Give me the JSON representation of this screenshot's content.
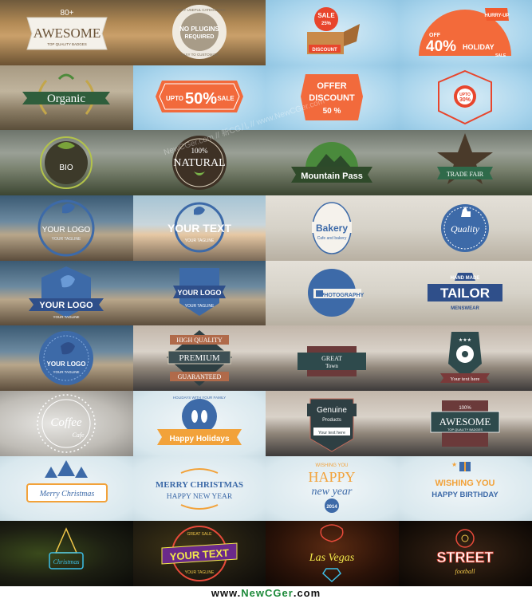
{
  "footer": {
    "prefix": "www.",
    "brand": "NewCGer",
    "suffix": ".com"
  },
  "watermark": "NewCGer.com // 新CG儿 // www.NewCGer.com",
  "tiles": {
    "r1c1": {
      "top": "80+",
      "main": "AWESOME",
      "sub": "TOP QUALITY BADGES"
    },
    "r1c2": {
      "ring_top": "7 VERY USEFUL CATEGORIES",
      "main1": "NO PLUGINS",
      "main2": "REQUIRED",
      "ring_bottom": "EASY TO CUSTOMIZE"
    },
    "r1c3": {
      "sale": "SALE",
      "pct": "25%",
      "tag": "DISCOUNT"
    },
    "r1c4": {
      "hurry": "HURRY-UP",
      "off": "OFF",
      "pct": "40%",
      "holiday": "HOLIDAY",
      "sale": "SALE"
    },
    "r2c1": {
      "main": "Organic"
    },
    "r2c2": {
      "upto": "UPTO",
      "pct": "50%",
      "sale": "SALE"
    },
    "r2c3": {
      "l1": "OFFER",
      "l2": "DISCOUNT",
      "l3": "50 %"
    },
    "r2c4": {
      "upto": "UPTO",
      "pct": "30%"
    },
    "r3c1": {
      "main": "BIO"
    },
    "r3c2": {
      "top": "100%",
      "main": "NATURAL"
    },
    "r3c3": {
      "main": "Mountain Pass"
    },
    "r3c4": {
      "main": "TRADE FAIR"
    },
    "r4c1": {
      "main": "YOUR LOGO",
      "sub": "YOUR TAGLINE"
    },
    "r4c2": {
      "main": "YOUR TEXT",
      "sub": "YOUR TAGLINE"
    },
    "r4c3": {
      "main": "Bakery",
      "sub": "Cafe and bakery"
    },
    "r4c4": {
      "main": "Quality"
    },
    "r5c1": {
      "main": "YOUR LOGO",
      "sub": "YOUR TAGLINE"
    },
    "r5c2": {
      "main": "YOUR LOGO",
      "sub": "YOUR TAGLINE"
    },
    "r5c3": {
      "main": "PHOTOGRAPHY"
    },
    "r5c4": {
      "top": "HAND MADE",
      "main": "TAILOR",
      "sub": "MENSWEAR"
    },
    "r6c1": {
      "main": "YOUR LOGO",
      "sub": "YOUR TAGLINE"
    },
    "r6c2": {
      "top": "HIGH QUALITY",
      "main": "PREMIUM",
      "bottom": "GUARANTEED"
    },
    "r6c3": {
      "main1": "GREAT",
      "main2": "Town"
    },
    "r6c4": {
      "sub": "Your text here"
    },
    "r7c1": {
      "main": "Coffee",
      "sub": "Cafe"
    },
    "r7c2": {
      "ring": "HOLIDAYS WITH YOUR FAMILY",
      "main": "Happy Holidays"
    },
    "r7c3": {
      "main": "Genuine",
      "sub": "Products",
      "text": "Your text here"
    },
    "r7c4": {
      "top": "100%",
      "main": "AWESOME",
      "sub": "TOP QUALITY BADGES"
    },
    "r8c1": {
      "main": "Merry Christmas"
    },
    "r8c2": {
      "main1": "MERRY CHRISTMAS",
      "main2": "HAPPY NEW YEAR"
    },
    "r8c3": {
      "top": "WISHING YOU",
      "main1": "HAPPY",
      "main2": "new year",
      "year": "2014"
    },
    "r8c4": {
      "main1": "WISHING YOU",
      "main2": "HAPPY BIRTHDAY"
    },
    "r9c1": {
      "main": "Christmas"
    },
    "r9c2": {
      "top": "GREAT SALE",
      "main": "YOUR TEXT",
      "bottom": "YOUR TAGLINE"
    },
    "r9c3": {
      "main": "Las Vegas"
    },
    "r9c4": {
      "main": "STREET",
      "sub": "football"
    }
  }
}
